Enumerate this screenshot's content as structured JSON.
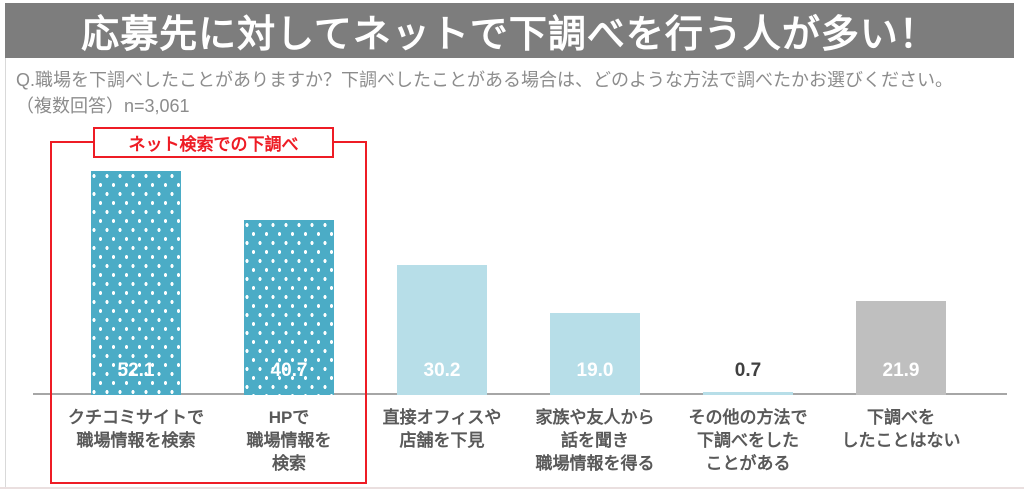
{
  "page": {
    "title_banner": "応募先に対してネットで下調べを行う人が多い！",
    "question_line1": "Q.職場を下調べしたことがありますか？下調べしたことがある場合は、どのような方法で調べたかお選びください。",
    "question_line2": "（複数回答）n=3,061"
  },
  "annotation": {
    "label": "ネット検索での下調べ",
    "border_color": "#ee1c25"
  },
  "colors": {
    "banner_bg": "#7d7d7d",
    "banner_text": "#ffffff",
    "teal": "#4bacc6",
    "lightblue": "#b7dee8",
    "gray": "#bfbfbf",
    "axis_line": "#a6a6a6",
    "question_text": "#8c8c8c",
    "category_text": "#595959"
  },
  "chart_data": {
    "type": "bar",
    "title": "応募先に対してネットで下調べを行う人が多い！",
    "categories": [
      "クチコミサイトで職場情報を検索",
      "HPで職場情報を検索",
      "直接オフィスや店舗を下見",
      "家族や友人から話を聞き職場情報を得る",
      "その他の方法で下調べをしたことがある",
      "下調べをしたことはない"
    ],
    "values": [
      52.1,
      40.7,
      30.2,
      19.0,
      0.7,
      21.9
    ],
    "xlabel": "",
    "ylabel": "",
    "ylim": [
      0,
      60
    ],
    "grid": false,
    "legend": "none",
    "bars": [
      {
        "category_lines": "クチコミサイトで\n職場情報を検索",
        "value": 52.1,
        "value_label": "52.1",
        "fill": "teal_dotted",
        "fill_color": "#4bacc6",
        "value_label_color": "#ffffff"
      },
      {
        "category_lines": "HPで\n職場情報を\n検索",
        "value": 40.7,
        "value_label": "40.7",
        "fill": "teal_dotted",
        "fill_color": "#4bacc6",
        "value_label_color": "#ffffff"
      },
      {
        "category_lines": "直接オフィスや\n店舗を下見",
        "value": 30.2,
        "value_label": "30.2",
        "fill": "lightblue",
        "fill_color": "#b7dee8",
        "value_label_color": "#ffffff"
      },
      {
        "category_lines": "家族や友人から\n話を聞き\n職場情報を得る",
        "value": 19.0,
        "value_label": "19.0",
        "fill": "lightblue",
        "fill_color": "#b7dee8",
        "value_label_color": "#ffffff"
      },
      {
        "category_lines": "その他の方法で\n下調べをした\nことがある",
        "value": 0.7,
        "value_label": "0.7",
        "fill": "lightblue",
        "fill_color": "#b7dee8",
        "value_label_color": "#404040"
      },
      {
        "category_lines": "下調べを\nしたことはない",
        "value": 21.9,
        "value_label": "21.9",
        "fill": "gray",
        "fill_color": "#bfbfbf",
        "value_label_color": "#ffffff"
      }
    ]
  }
}
